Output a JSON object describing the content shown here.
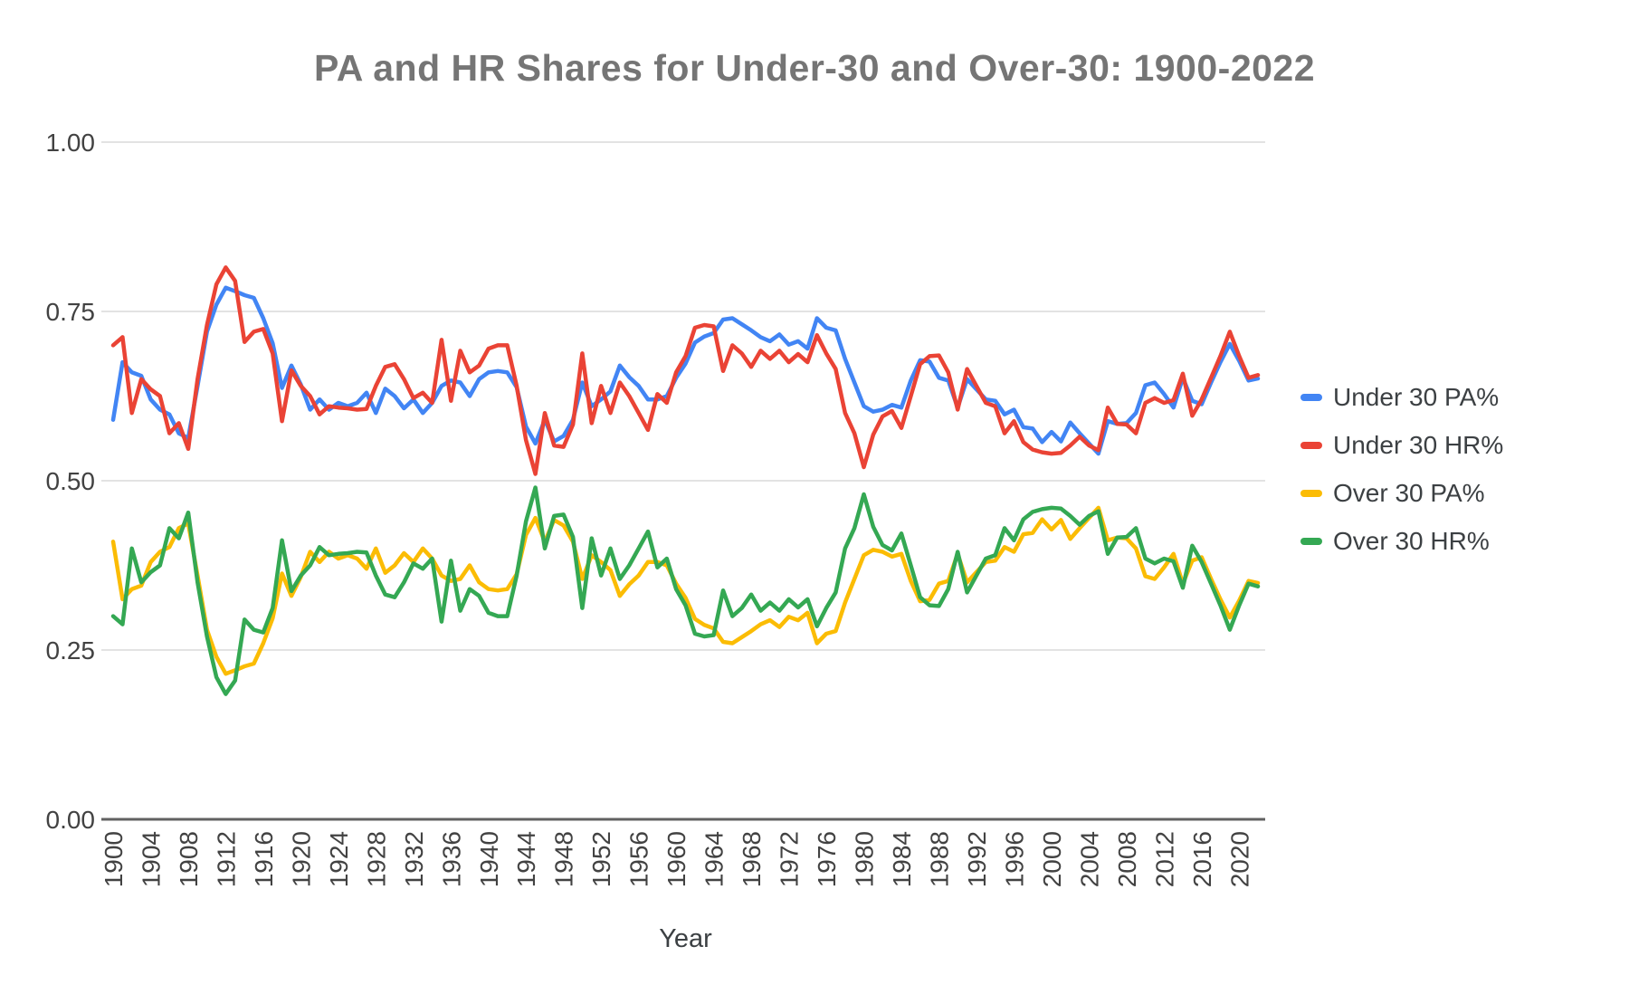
{
  "title": "PA and HR Shares for Under-30 and Over-30: 1900-2022",
  "axis": {
    "x_title": "Year",
    "y_tick_labels": [
      "0.00",
      "0.25",
      "0.50",
      "0.75",
      "1.00"
    ]
  },
  "legend": {
    "items": [
      {
        "label": "Under 30 PA%",
        "color": "#4285F4"
      },
      {
        "label": "Under 30 HR%",
        "color": "#EA4335"
      },
      {
        "label": "Over 30 PA%",
        "color": "#FBBC04"
      },
      {
        "label": "Over 30 HR%",
        "color": "#34A853"
      }
    ]
  },
  "colors": {
    "title_text": "#757575",
    "axis_text": "#424242",
    "legend_text": "#3c4043",
    "gridline": "#e3e3e3",
    "baseline": "#616161",
    "background": "#ffffff"
  },
  "chart_data": {
    "type": "line",
    "title": "PA and HR Shares for Under-30 and Over-30: 1900-2022",
    "xlabel": "Year",
    "ylabel": "",
    "x_start": 1900,
    "x_end": 2022,
    "x_step": 1,
    "ylim": [
      0,
      1
    ],
    "ytick_values": [
      0,
      0.25,
      0.5,
      0.75,
      1.0
    ],
    "ytick_labels": [
      "0.00",
      "0.25",
      "0.50",
      "0.75",
      "1.00"
    ],
    "xticks": [
      1900,
      1904,
      1908,
      1912,
      1916,
      1920,
      1924,
      1928,
      1932,
      1936,
      1940,
      1944,
      1948,
      1952,
      1956,
      1960,
      1964,
      1968,
      1972,
      1976,
      1980,
      1984,
      1988,
      1992,
      1996,
      2000,
      2004,
      2008,
      2012,
      2016,
      2020
    ],
    "grid": "horizontal",
    "legend_position": "right",
    "series": [
      {
        "name": "Under 30 PA%",
        "color": "#4285F4",
        "values": [
          0.59,
          0.675,
          0.66,
          0.655,
          0.62,
          0.605,
          0.598,
          0.57,
          0.563,
          0.64,
          0.72,
          0.76,
          0.785,
          0.78,
          0.774,
          0.77,
          0.74,
          0.703,
          0.637,
          0.67,
          0.642,
          0.605,
          0.62,
          0.605,
          0.615,
          0.61,
          0.615,
          0.63,
          0.6,
          0.636,
          0.625,
          0.607,
          0.62,
          0.6,
          0.615,
          0.64,
          0.648,
          0.645,
          0.625,
          0.65,
          0.66,
          0.662,
          0.66,
          0.638,
          0.58,
          0.555,
          0.59,
          0.558,
          0.566,
          0.59,
          0.645,
          0.61,
          0.62,
          0.632,
          0.67,
          0.653,
          0.64,
          0.62,
          0.62,
          0.625,
          0.652,
          0.673,
          0.704,
          0.713,
          0.718,
          0.738,
          0.74,
          0.731,
          0.722,
          0.712,
          0.706,
          0.716,
          0.701,
          0.706,
          0.695,
          0.74,
          0.726,
          0.722,
          0.68,
          0.645,
          0.61,
          0.602,
          0.605,
          0.612,
          0.608,
          0.648,
          0.678,
          0.676,
          0.652,
          0.648,
          0.608,
          0.65,
          0.635,
          0.62,
          0.618,
          0.598,
          0.605,
          0.579,
          0.577,
          0.557,
          0.572,
          0.558,
          0.586,
          0.57,
          0.555,
          0.54,
          0.588,
          0.584,
          0.585,
          0.6,
          0.641,
          0.645,
          0.628,
          0.608,
          0.652,
          0.618,
          0.613,
          0.645,
          0.675,
          0.702,
          0.677,
          0.648,
          0.651
        ]
      },
      {
        "name": "Under 30 HR%",
        "color": "#EA4335",
        "values": [
          0.7,
          0.712,
          0.6,
          0.65,
          0.635,
          0.625,
          0.57,
          0.585,
          0.547,
          0.65,
          0.73,
          0.79,
          0.815,
          0.795,
          0.705,
          0.72,
          0.724,
          0.688,
          0.588,
          0.663,
          0.64,
          0.625,
          0.598,
          0.61,
          0.608,
          0.607,
          0.605,
          0.606,
          0.64,
          0.668,
          0.672,
          0.65,
          0.622,
          0.63,
          0.615,
          0.708,
          0.618,
          0.692,
          0.66,
          0.67,
          0.695,
          0.7,
          0.7,
          0.64,
          0.56,
          0.51,
          0.6,
          0.552,
          0.55,
          0.583,
          0.688,
          0.585,
          0.64,
          0.6,
          0.645,
          0.625,
          0.6,
          0.575,
          0.628,
          0.615,
          0.66,
          0.684,
          0.726,
          0.73,
          0.728,
          0.662,
          0.7,
          0.688,
          0.668,
          0.692,
          0.68,
          0.692,
          0.675,
          0.687,
          0.675,
          0.715,
          0.688,
          0.665,
          0.6,
          0.57,
          0.52,
          0.568,
          0.595,
          0.603,
          0.578,
          0.625,
          0.672,
          0.684,
          0.685,
          0.66,
          0.605,
          0.665,
          0.64,
          0.615,
          0.61,
          0.57,
          0.588,
          0.557,
          0.546,
          0.542,
          0.54,
          0.541,
          0.552,
          0.565,
          0.552,
          0.545,
          0.608,
          0.584,
          0.583,
          0.57,
          0.615,
          0.622,
          0.615,
          0.619,
          0.658,
          0.596,
          0.62,
          0.652,
          0.684,
          0.72,
          0.684,
          0.652,
          0.656
        ]
      },
      {
        "name": "Over 30 PA%",
        "color": "#FBBC04",
        "values": [
          0.41,
          0.325,
          0.34,
          0.345,
          0.38,
          0.395,
          0.402,
          0.43,
          0.437,
          0.36,
          0.28,
          0.24,
          0.215,
          0.22,
          0.226,
          0.23,
          0.26,
          0.297,
          0.363,
          0.33,
          0.358,
          0.395,
          0.38,
          0.395,
          0.385,
          0.39,
          0.385,
          0.37,
          0.4,
          0.364,
          0.375,
          0.393,
          0.38,
          0.4,
          0.385,
          0.36,
          0.352,
          0.355,
          0.375,
          0.35,
          0.34,
          0.338,
          0.34,
          0.362,
          0.42,
          0.445,
          0.41,
          0.442,
          0.434,
          0.41,
          0.355,
          0.39,
          0.38,
          0.368,
          0.33,
          0.347,
          0.36,
          0.38,
          0.38,
          0.375,
          0.348,
          0.327,
          0.296,
          0.287,
          0.282,
          0.262,
          0.26,
          0.269,
          0.278,
          0.288,
          0.294,
          0.284,
          0.299,
          0.294,
          0.305,
          0.26,
          0.274,
          0.278,
          0.32,
          0.355,
          0.39,
          0.398,
          0.395,
          0.388,
          0.392,
          0.352,
          0.322,
          0.324,
          0.348,
          0.352,
          0.392,
          0.35,
          0.365,
          0.38,
          0.382,
          0.402,
          0.395,
          0.421,
          0.423,
          0.443,
          0.428,
          0.442,
          0.414,
          0.43,
          0.445,
          0.46,
          0.412,
          0.416,
          0.415,
          0.4,
          0.359,
          0.355,
          0.372,
          0.392,
          0.348,
          0.382,
          0.387,
          0.355,
          0.325,
          0.298,
          0.323,
          0.352,
          0.349
        ]
      },
      {
        "name": "Over 30 HR%",
        "color": "#34A853",
        "values": [
          0.3,
          0.288,
          0.4,
          0.35,
          0.365,
          0.375,
          0.43,
          0.415,
          0.453,
          0.35,
          0.27,
          0.21,
          0.185,
          0.205,
          0.295,
          0.28,
          0.276,
          0.312,
          0.412,
          0.337,
          0.36,
          0.375,
          0.402,
          0.39,
          0.392,
          0.393,
          0.395,
          0.394,
          0.36,
          0.332,
          0.328,
          0.35,
          0.378,
          0.37,
          0.385,
          0.292,
          0.382,
          0.308,
          0.34,
          0.33,
          0.305,
          0.3,
          0.3,
          0.36,
          0.44,
          0.49,
          0.4,
          0.448,
          0.45,
          0.417,
          0.312,
          0.415,
          0.36,
          0.4,
          0.355,
          0.375,
          0.4,
          0.425,
          0.372,
          0.385,
          0.34,
          0.316,
          0.274,
          0.27,
          0.272,
          0.338,
          0.3,
          0.312,
          0.332,
          0.308,
          0.32,
          0.308,
          0.325,
          0.313,
          0.325,
          0.285,
          0.312,
          0.335,
          0.4,
          0.43,
          0.48,
          0.432,
          0.405,
          0.397,
          0.422,
          0.375,
          0.328,
          0.316,
          0.315,
          0.34,
          0.395,
          0.335,
          0.36,
          0.385,
          0.39,
          0.43,
          0.412,
          0.443,
          0.454,
          0.458,
          0.46,
          0.459,
          0.448,
          0.435,
          0.448,
          0.455,
          0.392,
          0.416,
          0.417,
          0.43,
          0.385,
          0.378,
          0.385,
          0.381,
          0.342,
          0.404,
          0.38,
          0.348,
          0.316,
          0.28,
          0.316,
          0.348,
          0.344
        ]
      }
    ]
  }
}
